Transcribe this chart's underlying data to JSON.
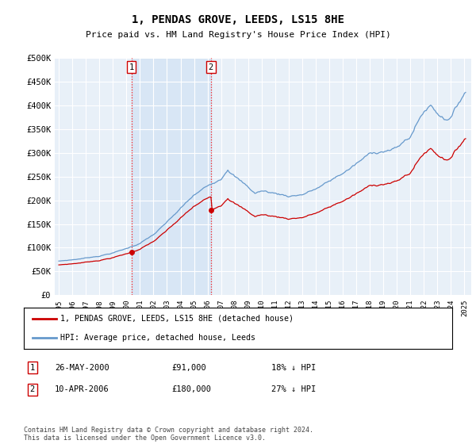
{
  "title": "1, PENDAS GROVE, LEEDS, LS15 8HE",
  "subtitle": "Price paid vs. HM Land Registry's House Price Index (HPI)",
  "hpi_color": "#6699cc",
  "price_color": "#cc0000",
  "marker_color": "#cc0000",
  "shade_color": "#ddeeff",
  "background_color": "#ffffff",
  "plot_bg_color": "#e8f0f8",
  "grid_color": "#ffffff",
  "ylim": [
    0,
    500000
  ],
  "yticks": [
    0,
    50000,
    100000,
    150000,
    200000,
    250000,
    300000,
    350000,
    400000,
    450000,
    500000
  ],
  "ytick_labels": [
    "£0",
    "£50K",
    "£100K",
    "£150K",
    "£200K",
    "£250K",
    "£300K",
    "£350K",
    "£400K",
    "£450K",
    "£500K"
  ],
  "sale1_year": 2000.375,
  "sale1_price": 91000,
  "sale1_label": "1",
  "sale1_date_str": "26-MAY-2000",
  "sale1_price_str": "£91,000",
  "sale1_pct": "18% ↓ HPI",
  "sale2_year": 2006.25,
  "sale2_price": 180000,
  "sale2_label": "2",
  "sale2_date_str": "10-APR-2006",
  "sale2_price_str": "£180,000",
  "sale2_pct": "27% ↓ HPI",
  "legend_label_price": "1, PENDAS GROVE, LEEDS, LS15 8HE (detached house)",
  "legend_label_hpi": "HPI: Average price, detached house, Leeds",
  "footer": "Contains HM Land Registry data © Crown copyright and database right 2024.\nThis data is licensed under the Open Government Licence v3.0."
}
